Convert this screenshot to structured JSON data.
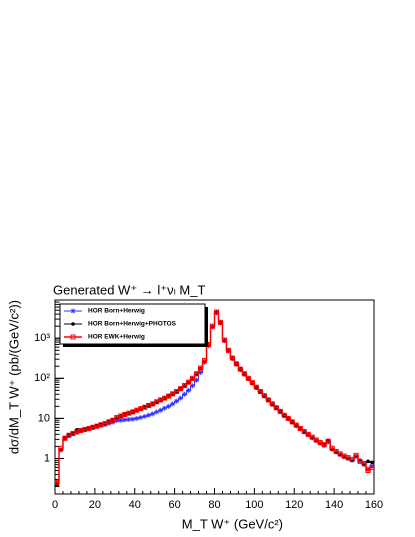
{
  "chart_data": {
    "type": "histogram",
    "title": "Generated W⁺ → l⁺νₗ M_T",
    "xlabel": "M_T W⁺ (GeV/c²)",
    "ylabel": "dσ/dM_T W⁺ (pb/(GeV/c²))",
    "bins": [
      0,
      2,
      4,
      6,
      8,
      10,
      12,
      14,
      16,
      18,
      20,
      22,
      24,
      26,
      28,
      30,
      32,
      34,
      36,
      38,
      40,
      42,
      44,
      46,
      48,
      50,
      52,
      54,
      56,
      58,
      60,
      62,
      64,
      66,
      68,
      70,
      72,
      74,
      76,
      78,
      80,
      82,
      84,
      86,
      88,
      90,
      92,
      94,
      96,
      98,
      100,
      102,
      104,
      106,
      108,
      110,
      112,
      114,
      116,
      118,
      120,
      122,
      124,
      126,
      128,
      130,
      132,
      134,
      136,
      138,
      140,
      142,
      144,
      146,
      148,
      150,
      152,
      154,
      156,
      158,
      160
    ],
    "series": [
      {
        "name": "HOR Born+Herwig",
        "color": "#3030ff",
        "marker": "star",
        "values": [
          0.25,
          1.6,
          3.1,
          3.7,
          4.1,
          4.5,
          4.9,
          5.2,
          5.5,
          5.9,
          6.2,
          6.6,
          7,
          7.5,
          8,
          8.8,
          9,
          9.2,
          9.4,
          9.6,
          10,
          10.5,
          11.2,
          12,
          13,
          14.5,
          16,
          18,
          20,
          23,
          27,
          32,
          40,
          50,
          65,
          90,
          140,
          250,
          650,
          1900,
          4300,
          2400,
          870,
          480,
          310,
          225,
          165,
          126,
          97,
          76,
          59,
          46,
          36,
          28.5,
          22.5,
          18,
          14.6,
          11.7,
          9.8,
          8,
          6.6,
          5.5,
          4.6,
          3.9,
          3.3,
          2.8,
          2.4,
          2.1,
          2.6,
          1.7,
          1.45,
          1.25,
          1.1,
          1,
          0.9,
          1.1,
          0.85,
          0.75,
          0.55,
          0.65
        ]
      },
      {
        "name": "HOR Born+Herwig+PHOTOS",
        "color": "#000000",
        "marker": "circle",
        "values": [
          0.22,
          1.7,
          3.3,
          3.9,
          4.3,
          5.2,
          4.9,
          5.4,
          5.7,
          6.1,
          6.5,
          7.2,
          7.3,
          8.4,
          9.2,
          10.3,
          11.3,
          12.6,
          13.3,
          14.6,
          15.8,
          17.3,
          19.2,
          20.8,
          22.8,
          25.5,
          28.8,
          31.8,
          36.5,
          40.5,
          46.5,
          55,
          65,
          79,
          98,
          128,
          175,
          270,
          680,
          1950,
          4400,
          2450,
          880,
          490,
          315,
          228,
          168,
          128,
          99,
          77,
          59,
          46,
          36.5,
          28.5,
          22.5,
          18.3,
          14.8,
          11.8,
          9.9,
          8.1,
          6.7,
          5.5,
          4.6,
          3.9,
          3.3,
          2.8,
          2.4,
          2.3,
          2.8,
          1.7,
          1.45,
          1.25,
          1.1,
          1,
          0.9,
          1.15,
          0.9,
          0.7,
          0.85,
          0.8
        ]
      },
      {
        "name": "HOR EWK+Herwig",
        "color": "#ff0000",
        "marker": "open-square",
        "values": [
          0.25,
          1.8,
          3.2,
          3.8,
          4.2,
          4.6,
          5,
          5.3,
          5.6,
          6,
          6.4,
          6.9,
          7.4,
          8.2,
          9,
          10.5,
          11.5,
          12.5,
          13.5,
          14.5,
          16,
          17.5,
          19,
          21,
          23,
          26,
          29,
          32,
          36,
          41,
          47,
          55,
          66,
          80,
          100,
          130,
          180,
          280,
          700,
          2000,
          4500,
          2500,
          900,
          500,
          320,
          230,
          170,
          130,
          100,
          78,
          60,
          47,
          37,
          29,
          23,
          18.5,
          15,
          12,
          10,
          8.2,
          6.8,
          5.6,
          4.7,
          4,
          3.4,
          2.9,
          2.5,
          2.2,
          2.7,
          1.8,
          1.5,
          1.3,
          1.15,
          1.05,
          0.95,
          1.2,
          0.85,
          0.75,
          0.5,
          0.6
        ]
      }
    ],
    "xlim": [
      0,
      160
    ],
    "xticks": [
      0,
      20,
      40,
      60,
      80,
      100,
      120,
      140,
      160
    ],
    "ylim": [
      0.13,
      9000
    ],
    "yticks": [
      1,
      10,
      {
        "value": 100,
        "label": "10²"
      },
      {
        "value": 1000,
        "label": "10³"
      }
    ],
    "log_y": true,
    "legend": "top-left"
  }
}
